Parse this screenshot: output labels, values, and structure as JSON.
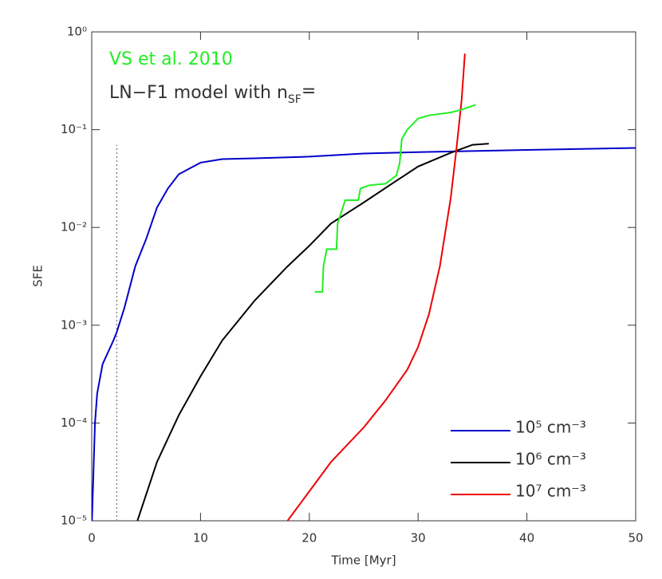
{
  "chart_data": {
    "type": "line",
    "x_label": "Time [Myr]",
    "y_label": "SFE",
    "xlim": [
      0,
      50
    ],
    "xticks": [
      0,
      10,
      20,
      30,
      40,
      50
    ],
    "ylim": [
      1e-05,
      1
    ],
    "log_y": true,
    "yticks": [
      {
        "value": 1e-05,
        "label": "10⁻⁵"
      },
      {
        "value": 0.0001,
        "label": "10⁻⁴"
      },
      {
        "value": 0.001,
        "label": "10⁻³"
      },
      {
        "value": 0.01,
        "label": "10⁻²"
      },
      {
        "value": 0.1,
        "label": "10⁻¹"
      },
      {
        "value": 1,
        "label": "10⁰"
      }
    ],
    "legend": "lower right",
    "annotations": [
      {
        "text": "VS et al. 2010",
        "color": "#22ee22"
      },
      {
        "text": "LN−F1 model with n",
        "sub": "SF",
        "tail": "=",
        "color": "#333333"
      }
    ],
    "reference_line": {
      "x": [
        2.3,
        2.3
      ],
      "values": [
        1e-05,
        0.07
      ],
      "color": "#888888"
    },
    "series": [
      {
        "name": "10⁵ cm⁻³",
        "color": "#0000cc",
        "x": [
          0.02,
          0.3,
          0.5,
          1,
          2,
          2.3,
          3,
          4,
          5,
          6,
          7,
          8,
          10,
          12,
          15,
          20,
          25,
          30,
          40,
          50
        ],
        "values": [
          1e-05,
          0.0001,
          0.0002,
          0.0004,
          0.0007,
          0.00085,
          0.0015,
          0.004,
          0.0076,
          0.016,
          0.025,
          0.035,
          0.046,
          0.05,
          0.051,
          0.053,
          0.057,
          0.059,
          0.062,
          0.065
        ]
      },
      {
        "name": "10⁶ cm⁻³",
        "color": "#000000",
        "x": [
          4.2,
          6,
          8,
          10,
          12,
          15,
          18,
          20,
          22,
          25,
          28,
          30,
          33,
          35,
          36.5
        ],
        "values": [
          1e-05,
          4e-05,
          0.00012,
          0.0003,
          0.0007,
          0.0018,
          0.004,
          0.0065,
          0.011,
          0.018,
          0.03,
          0.042,
          0.058,
          0.07,
          0.072
        ]
      },
      {
        "name": "10⁷ cm⁻³",
        "color": "#ee0000",
        "x": [
          18,
          20,
          22,
          25,
          27,
          29,
          30,
          31,
          32,
          33,
          33.5,
          34,
          34.3
        ],
        "values": [
          1e-05,
          2e-05,
          4e-05,
          9e-05,
          0.00017,
          0.00035,
          0.0006,
          0.0013,
          0.004,
          0.02,
          0.06,
          0.2,
          0.6
        ]
      },
      {
        "color": "#22ee22",
        "x": [
          20.5,
          21.2,
          21.3,
          21.6,
          22.5,
          22.6,
          23,
          23.3,
          24.5,
          24.7,
          25.5,
          27,
          28,
          28.3,
          28.5,
          29,
          30,
          31,
          33,
          34,
          35.3
        ],
        "values": [
          0.0022,
          0.0022,
          0.004,
          0.006,
          0.006,
          0.011,
          0.015,
          0.019,
          0.019,
          0.025,
          0.027,
          0.028,
          0.034,
          0.045,
          0.08,
          0.1,
          0.13,
          0.14,
          0.15,
          0.16,
          0.18
        ]
      }
    ]
  }
}
